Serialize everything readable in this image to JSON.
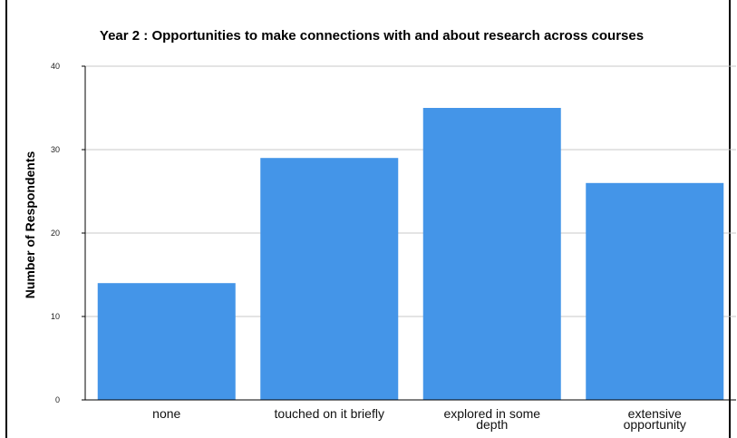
{
  "chart_data": {
    "type": "bar",
    "title": "Year 2 : Opportunities to make connections with and about research across courses",
    "xlabel": "",
    "ylabel": "Number of Respondents",
    "categories": [
      "none",
      "touched on it briefly",
      "explored in some depth",
      "extensive opportunity"
    ],
    "category_lines": [
      [
        "none"
      ],
      [
        "touched on it briefly"
      ],
      [
        "explored in some",
        "depth"
      ],
      [
        "extensive",
        "opportunity"
      ]
    ],
    "values": [
      14,
      29,
      35,
      26
    ],
    "ylim": [
      0,
      40
    ],
    "yticks": [
      "0",
      "10",
      "20",
      "30",
      "40"
    ],
    "grid": true,
    "bar_color": "#4495E8",
    "grid_color": "#c8c8c8"
  }
}
